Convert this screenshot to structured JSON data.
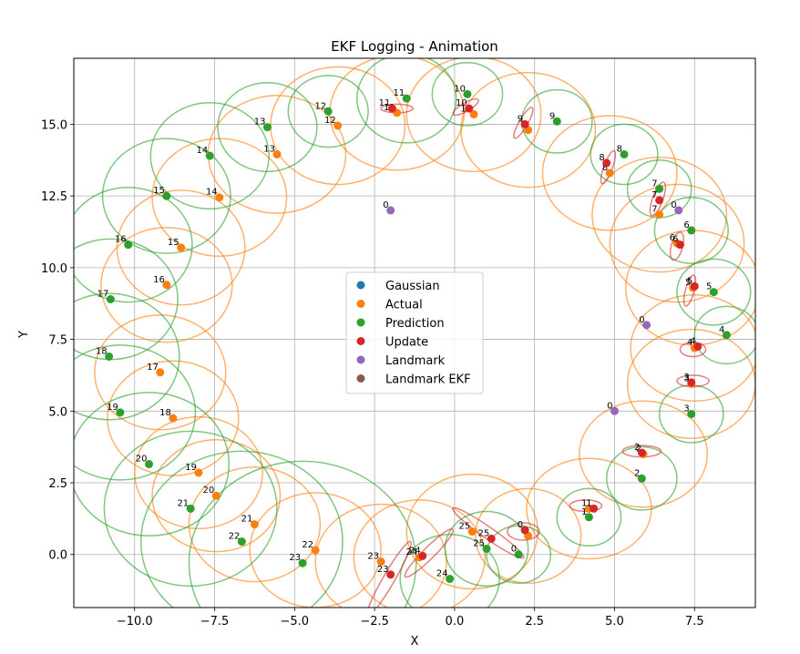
{
  "chart_data": {
    "type": "scatter",
    "title": "EKF Logging - Animation",
    "xlabel": "X",
    "ylabel": "Y",
    "xlim": [
      -11.9,
      9.4
    ],
    "ylim": [
      -1.85,
      17.3
    ],
    "xticks": [
      -10.0,
      -7.5,
      -5.0,
      -2.5,
      0.0,
      2.5,
      5.0,
      7.5
    ],
    "xtick_labels": [
      "−10.0",
      "−7.5",
      "−5.0",
      "−2.5",
      "0.0",
      "2.5",
      "5.0",
      "7.5"
    ],
    "yticks": [
      0.0,
      2.5,
      5.0,
      7.5,
      10.0,
      12.5,
      15.0
    ],
    "ytick_labels": [
      "0.0",
      "2.5",
      "5.0",
      "7.5",
      "10.0",
      "12.5",
      "15.0"
    ],
    "grid": true,
    "legend_position": "center",
    "legend": [
      {
        "name": "Gaussian",
        "color": "#1f77b4"
      },
      {
        "name": "Actual",
        "color": "#ff7f0e"
      },
      {
        "name": "Prediction",
        "color": "#2ca02c"
      },
      {
        "name": "Update",
        "color": "#d62728"
      },
      {
        "name": "Landmark",
        "color": "#9467bd"
      },
      {
        "name": "Landmark EKF",
        "color": "#8c564b"
      }
    ],
    "series": {
      "actual": {
        "color": "#ff7f0e",
        "labels": [
          "0",
          "1",
          "2",
          "3",
          "4",
          "5",
          "6",
          "7",
          "8",
          "9",
          "10",
          "11",
          "12",
          "13",
          "14",
          "15",
          "16",
          "17",
          "18",
          "19",
          "20",
          "21",
          "22",
          "23",
          "24",
          "25"
        ],
        "points": [
          [
            2.3,
            0.65
          ],
          [
            4.2,
            1.6
          ],
          [
            5.9,
            3.5
          ],
          [
            7.4,
            5.95
          ],
          [
            7.5,
            7.2
          ],
          [
            7.45,
            9.3
          ],
          [
            6.95,
            10.85
          ],
          [
            6.4,
            11.85
          ],
          [
            4.85,
            13.3
          ],
          [
            2.3,
            14.8
          ],
          [
            0.6,
            15.35
          ],
          [
            -1.8,
            15.4
          ],
          [
            -3.65,
            14.95
          ],
          [
            -5.55,
            13.95
          ],
          [
            -7.35,
            12.45
          ],
          [
            -8.55,
            10.7
          ],
          [
            -9.0,
            9.4
          ],
          [
            -9.2,
            6.35
          ],
          [
            -8.8,
            4.75
          ],
          [
            -8.0,
            2.85
          ],
          [
            -7.45,
            2.05
          ],
          [
            -6.25,
            1.05
          ],
          [
            -4.35,
            0.15
          ],
          [
            -2.3,
            -0.25
          ],
          [
            -1.1,
            -0.1
          ],
          [
            0.55,
            0.8
          ]
        ],
        "radii": [
          [
            1.65,
            1.65
          ],
          [
            1.95,
            1.75
          ],
          [
            2.0,
            1.85
          ],
          [
            2.0,
            1.9
          ],
          [
            2.0,
            1.85
          ],
          [
            2.1,
            2.0
          ],
          [
            2.1,
            2.05
          ],
          [
            2.1,
            2.0
          ],
          [
            2.1,
            2.0
          ],
          [
            2.1,
            2.0
          ],
          [
            2.1,
            2.0
          ],
          [
            2.1,
            2.0
          ],
          [
            2.1,
            2.05
          ],
          [
            2.15,
            2.05
          ],
          [
            2.1,
            2.05
          ],
          [
            2.0,
            2.0
          ],
          [
            2.05,
            2.0
          ],
          [
            2.05,
            2.0
          ],
          [
            2.05,
            2.0
          ],
          [
            2.0,
            1.95
          ],
          [
            2.0,
            1.95
          ],
          [
            2.05,
            2.0
          ],
          [
            2.05,
            2.0
          ],
          [
            2.05,
            2.0
          ],
          [
            2.05,
            2.0
          ],
          [
            2.05,
            2.0
          ]
        ]
      },
      "prediction": {
        "color": "#2ca02c",
        "labels": [
          "0",
          "1",
          "2",
          "3",
          "4",
          "5",
          "6",
          "7",
          "8",
          "9",
          "10",
          "11",
          "12",
          "13",
          "14",
          "15",
          "16",
          "17",
          "18",
          "19",
          "20",
          "21",
          "22",
          "23",
          "24",
          "25"
        ],
        "points": [
          [
            2.0,
            0.0
          ],
          [
            4.2,
            1.3
          ],
          [
            5.85,
            2.65
          ],
          [
            7.4,
            4.9
          ],
          [
            8.5,
            7.65
          ],
          [
            8.1,
            9.15
          ],
          [
            7.4,
            11.3
          ],
          [
            6.4,
            12.75
          ],
          [
            5.3,
            13.95
          ],
          [
            3.2,
            15.1
          ],
          [
            0.4,
            16.05
          ],
          [
            -1.5,
            15.9
          ],
          [
            -3.95,
            15.45
          ],
          [
            -5.85,
            14.9
          ],
          [
            -7.65,
            13.9
          ],
          [
            -9.0,
            12.5
          ],
          [
            -10.2,
            10.8
          ],
          [
            -10.75,
            8.9
          ],
          [
            -10.8,
            6.9
          ],
          [
            -10.45,
            4.95
          ],
          [
            -9.55,
            3.15
          ],
          [
            -8.25,
            1.6
          ],
          [
            -6.65,
            0.45
          ],
          [
            -4.75,
            -0.3
          ],
          [
            -0.15,
            -0.85
          ],
          [
            1.0,
            0.2
          ]
        ],
        "radii": [
          [
            1.0,
            1.0
          ],
          [
            1.0,
            1.0
          ],
          [
            1.1,
            1.1
          ],
          [
            1.0,
            1.0
          ],
          [
            1.0,
            1.0
          ],
          [
            1.15,
            1.15
          ],
          [
            1.15,
            1.15
          ],
          [
            1.0,
            1.0
          ],
          [
            1.05,
            1.05
          ],
          [
            1.1,
            1.1
          ],
          [
            1.1,
            1.1
          ],
          [
            1.55,
            1.55
          ],
          [
            1.25,
            1.25
          ],
          [
            1.55,
            1.55
          ],
          [
            1.85,
            1.85
          ],
          [
            2.0,
            2.0
          ],
          [
            2.0,
            2.0
          ],
          [
            2.1,
            2.1
          ],
          [
            2.2,
            2.2
          ],
          [
            2.35,
            2.35
          ],
          [
            2.5,
            2.5
          ],
          [
            2.7,
            2.7
          ],
          [
            3.15,
            3.15
          ],
          [
            3.55,
            3.55
          ],
          [
            1.55,
            1.55
          ],
          [
            1.3,
            1.3
          ]
        ]
      },
      "update": {
        "color": "#d62728",
        "labels": [
          "0",
          "1",
          "2",
          "3",
          "4",
          "5",
          "6",
          "7",
          "8",
          "9",
          "10",
          "11",
          "23",
          "24",
          "25"
        ],
        "points": [
          [
            2.2,
            0.85
          ],
          [
            4.35,
            1.6
          ],
          [
            5.85,
            3.55
          ],
          [
            7.4,
            6.0
          ],
          [
            7.6,
            7.25
          ],
          [
            7.5,
            9.35
          ],
          [
            7.05,
            10.8
          ],
          [
            6.4,
            12.35
          ],
          [
            4.75,
            13.65
          ],
          [
            2.2,
            15.0
          ],
          [
            0.45,
            15.55
          ],
          [
            -1.95,
            15.55
          ],
          [
            -2.0,
            -0.7
          ],
          [
            -1.0,
            -0.05
          ],
          [
            1.15,
            0.55
          ]
        ],
        "ellipses": [
          [
            2.15,
            0.8,
            0.5,
            0.3,
            0
          ],
          [
            4.1,
            1.7,
            0.5,
            0.2,
            0
          ],
          [
            5.85,
            3.6,
            0.6,
            0.2,
            0
          ],
          [
            7.45,
            6.05,
            0.5,
            0.2,
            0
          ],
          [
            7.45,
            7.15,
            0.4,
            0.25,
            0
          ],
          [
            7.35,
            9.2,
            0.5,
            0.15,
            75
          ],
          [
            6.95,
            10.75,
            0.45,
            0.2,
            75
          ],
          [
            6.35,
            12.4,
            0.55,
            0.18,
            70
          ],
          [
            4.8,
            13.5,
            0.55,
            0.15,
            70
          ],
          [
            2.15,
            15.05,
            0.55,
            0.15,
            60
          ],
          [
            0.35,
            15.6,
            0.45,
            0.15,
            30
          ],
          [
            -1.8,
            15.55,
            0.5,
            0.15,
            0
          ],
          [
            -2.05,
            -0.85,
            1.35,
            0.2,
            60
          ],
          [
            -0.8,
            0.05,
            1.05,
            0.2,
            45
          ],
          [
            1.05,
            0.75,
            1.35,
            0.2,
            -35
          ]
        ]
      },
      "landmark": {
        "color": "#9467bd",
        "labels": [
          "0",
          "0",
          "0",
          "0"
        ],
        "points": [
          [
            -2.0,
            12.0
          ],
          [
            7.0,
            12.0
          ],
          [
            6.0,
            8.0
          ],
          [
            5.0,
            5.0
          ]
        ]
      }
    }
  }
}
